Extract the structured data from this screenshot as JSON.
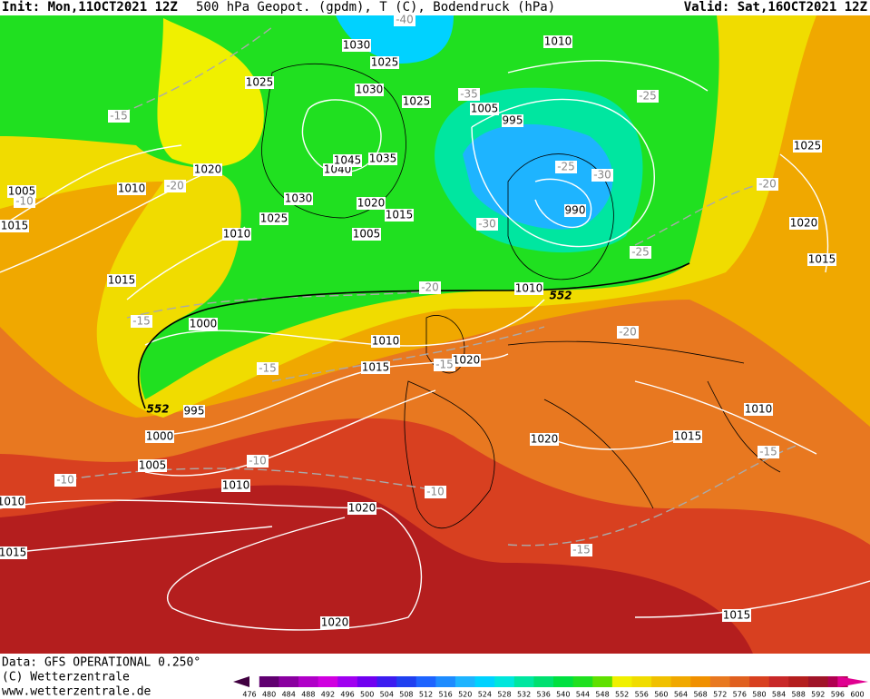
{
  "header": {
    "init": "Init: Mon,11OCT2021 12Z",
    "title": "500 hPa Geopot. (gpdm), T (C), Bodendruck (hPa)",
    "valid": "Valid: Sat,16OCT2021 12Z"
  },
  "map": {
    "pressure_labels": [
      "1030",
      "1025",
      "1030",
      "1025",
      "1005",
      "995",
      "1010",
      "1025",
      "1020",
      "1005",
      "1010",
      "1015",
      "1010",
      "1015",
      "1040",
      "1045",
      "1035",
      "1030",
      "1020",
      "1015",
      "1025",
      "1005",
      "990",
      "1010",
      "1000",
      "1010",
      "1015",
      "1020",
      "995",
      "1000",
      "1005",
      "1010",
      "1020",
      "1020",
      "1025",
      "1020",
      "1015",
      "1010",
      "1015",
      "1015",
      "1020",
      "1010",
      "1015"
    ],
    "temperature_labels": [
      "-40",
      "-35",
      "-25",
      "-20",
      "-20",
      "-30",
      "-25",
      "-30",
      "-25",
      "-20",
      "-20",
      "-15",
      "-15",
      "-15",
      "-10",
      "-10",
      "-10",
      "-15",
      "-15",
      "-15",
      "-10"
    ],
    "contour_labels": [
      "552",
      "552"
    ]
  },
  "footer": {
    "data": "Data: GFS OPERATIONAL 0.250°",
    "copyright": "(C) Wetterzentrale",
    "url": "www.wetterzentrale.de"
  },
  "colorbar": {
    "ticks": [
      476,
      480,
      484,
      488,
      492,
      496,
      500,
      504,
      508,
      512,
      516,
      520,
      524,
      528,
      532,
      536,
      540,
      544,
      548,
      552,
      556,
      560,
      564,
      568,
      572,
      576,
      580,
      584,
      588,
      592,
      596,
      600
    ],
    "colors": [
      "#400040",
      "#600070",
      "#8a00a0",
      "#b000c8",
      "#d000e0",
      "#a000f0",
      "#7000f0",
      "#3c1cf0",
      "#2040f0",
      "#1e64ff",
      "#1e8cff",
      "#1eb4ff",
      "#00d2ff",
      "#00e6dc",
      "#00e6a0",
      "#00e070",
      "#00e040",
      "#20e020",
      "#60e000",
      "#f0f000",
      "#f0dc00",
      "#f0c000",
      "#f0a800",
      "#f09000",
      "#e87820",
      "#e06020",
      "#d84020",
      "#c82828",
      "#b41e1e",
      "#a01428",
      "#b00050",
      "#e00090"
    ]
  }
}
